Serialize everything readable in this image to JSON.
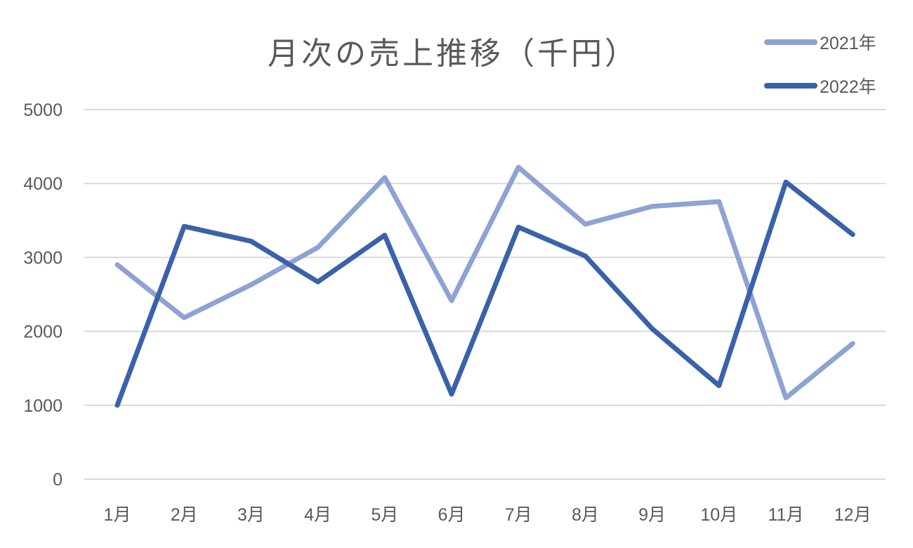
{
  "chart_data": {
    "type": "line",
    "title": "月次の売上推移（千円）",
    "xlabel": "",
    "ylabel": "",
    "categories": [
      "1月",
      "2月",
      "3月",
      "4月",
      "5月",
      "6月",
      "7月",
      "8月",
      "9月",
      "10月",
      "11月",
      "12月"
    ],
    "series": [
      {
        "name": "2021年",
        "color": "#8FA2D4",
        "values": [
          2900,
          2185,
          2630,
          3135,
          4080,
          2415,
          4220,
          3450,
          3690,
          3755,
          1100,
          1835
        ]
      },
      {
        "name": "2022年",
        "color": "#3A62AA",
        "values": [
          1000,
          3420,
          3220,
          2670,
          3300,
          1150,
          3410,
          3020,
          2035,
          1265,
          4020,
          3310
        ]
      }
    ],
    "ylim": [
      0,
      5000
    ],
    "yticks": [
      0,
      1000,
      2000,
      3000,
      4000,
      5000
    ],
    "grid": true,
    "gridline_color": "#D9D9D9",
    "legend_position": "top-right"
  }
}
